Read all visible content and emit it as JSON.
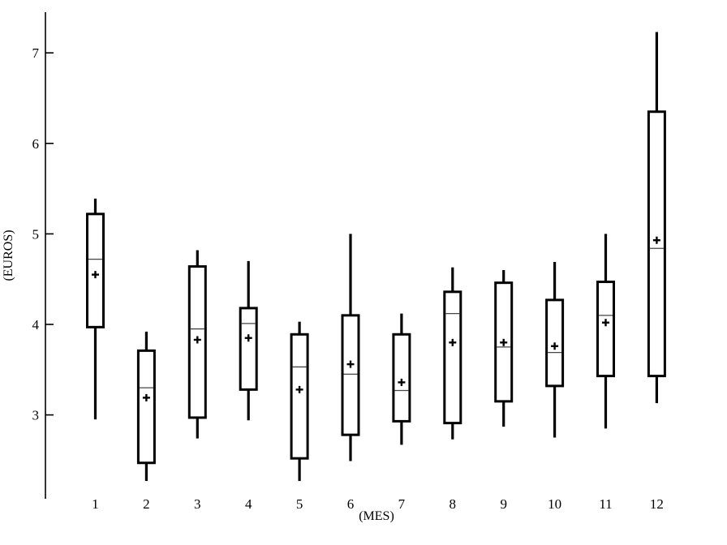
{
  "chart_data": {
    "type": "boxplot",
    "title": "",
    "xlabel": "(MES)",
    "ylabel": "(EUROS)",
    "categories": [
      "1",
      "2",
      "3",
      "4",
      "5",
      "6",
      "7",
      "8",
      "9",
      "10",
      "11",
      "12"
    ],
    "yticks": [
      3,
      4,
      5,
      6,
      7
    ],
    "ylim": [
      2.08,
      7.46
    ],
    "grid": false,
    "legend_position": "none",
    "mean_marker_glyph": "+",
    "series": [
      {
        "label": "1",
        "min": 2.95,
        "q1": 3.97,
        "median": 4.72,
        "mean": 4.55,
        "q3": 5.22,
        "max": 5.39
      },
      {
        "label": "2",
        "min": 2.27,
        "q1": 2.47,
        "median": 3.3,
        "mean": 3.19,
        "q3": 3.71,
        "max": 3.92
      },
      {
        "label": "3",
        "min": 2.74,
        "q1": 2.97,
        "median": 3.95,
        "mean": 3.83,
        "q3": 4.64,
        "max": 4.82
      },
      {
        "label": "4",
        "min": 2.94,
        "q1": 3.28,
        "median": 4.01,
        "mean": 3.85,
        "q3": 4.18,
        "max": 4.7
      },
      {
        "label": "5",
        "min": 2.27,
        "q1": 2.52,
        "median": 3.53,
        "mean": 3.28,
        "q3": 3.89,
        "max": 4.03
      },
      {
        "label": "6",
        "min": 2.49,
        "q1": 2.78,
        "median": 3.45,
        "mean": 3.56,
        "q3": 4.1,
        "max": 5.0
      },
      {
        "label": "7",
        "min": 2.67,
        "q1": 2.93,
        "median": 3.27,
        "mean": 3.36,
        "q3": 3.89,
        "max": 4.12
      },
      {
        "label": "8",
        "min": 2.73,
        "q1": 2.91,
        "median": 4.12,
        "mean": 3.8,
        "q3": 4.36,
        "max": 4.63
      },
      {
        "label": "9",
        "min": 2.87,
        "q1": 3.15,
        "median": 3.75,
        "mean": 3.8,
        "q3": 4.46,
        "max": 4.6
      },
      {
        "label": "10",
        "min": 2.75,
        "q1": 3.32,
        "median": 3.69,
        "mean": 3.76,
        "q3": 4.27,
        "max": 4.69
      },
      {
        "label": "11",
        "min": 2.85,
        "q1": 3.43,
        "median": 4.1,
        "mean": 4.02,
        "q3": 4.47,
        "max": 5.0
      },
      {
        "label": "12",
        "min": 3.13,
        "q1": 3.43,
        "median": 4.84,
        "mean": 4.93,
        "q3": 6.35,
        "max": 7.23
      }
    ]
  },
  "colors": {
    "line": "#000000",
    "median_line": "#444444",
    "background": "#ffffff"
  }
}
